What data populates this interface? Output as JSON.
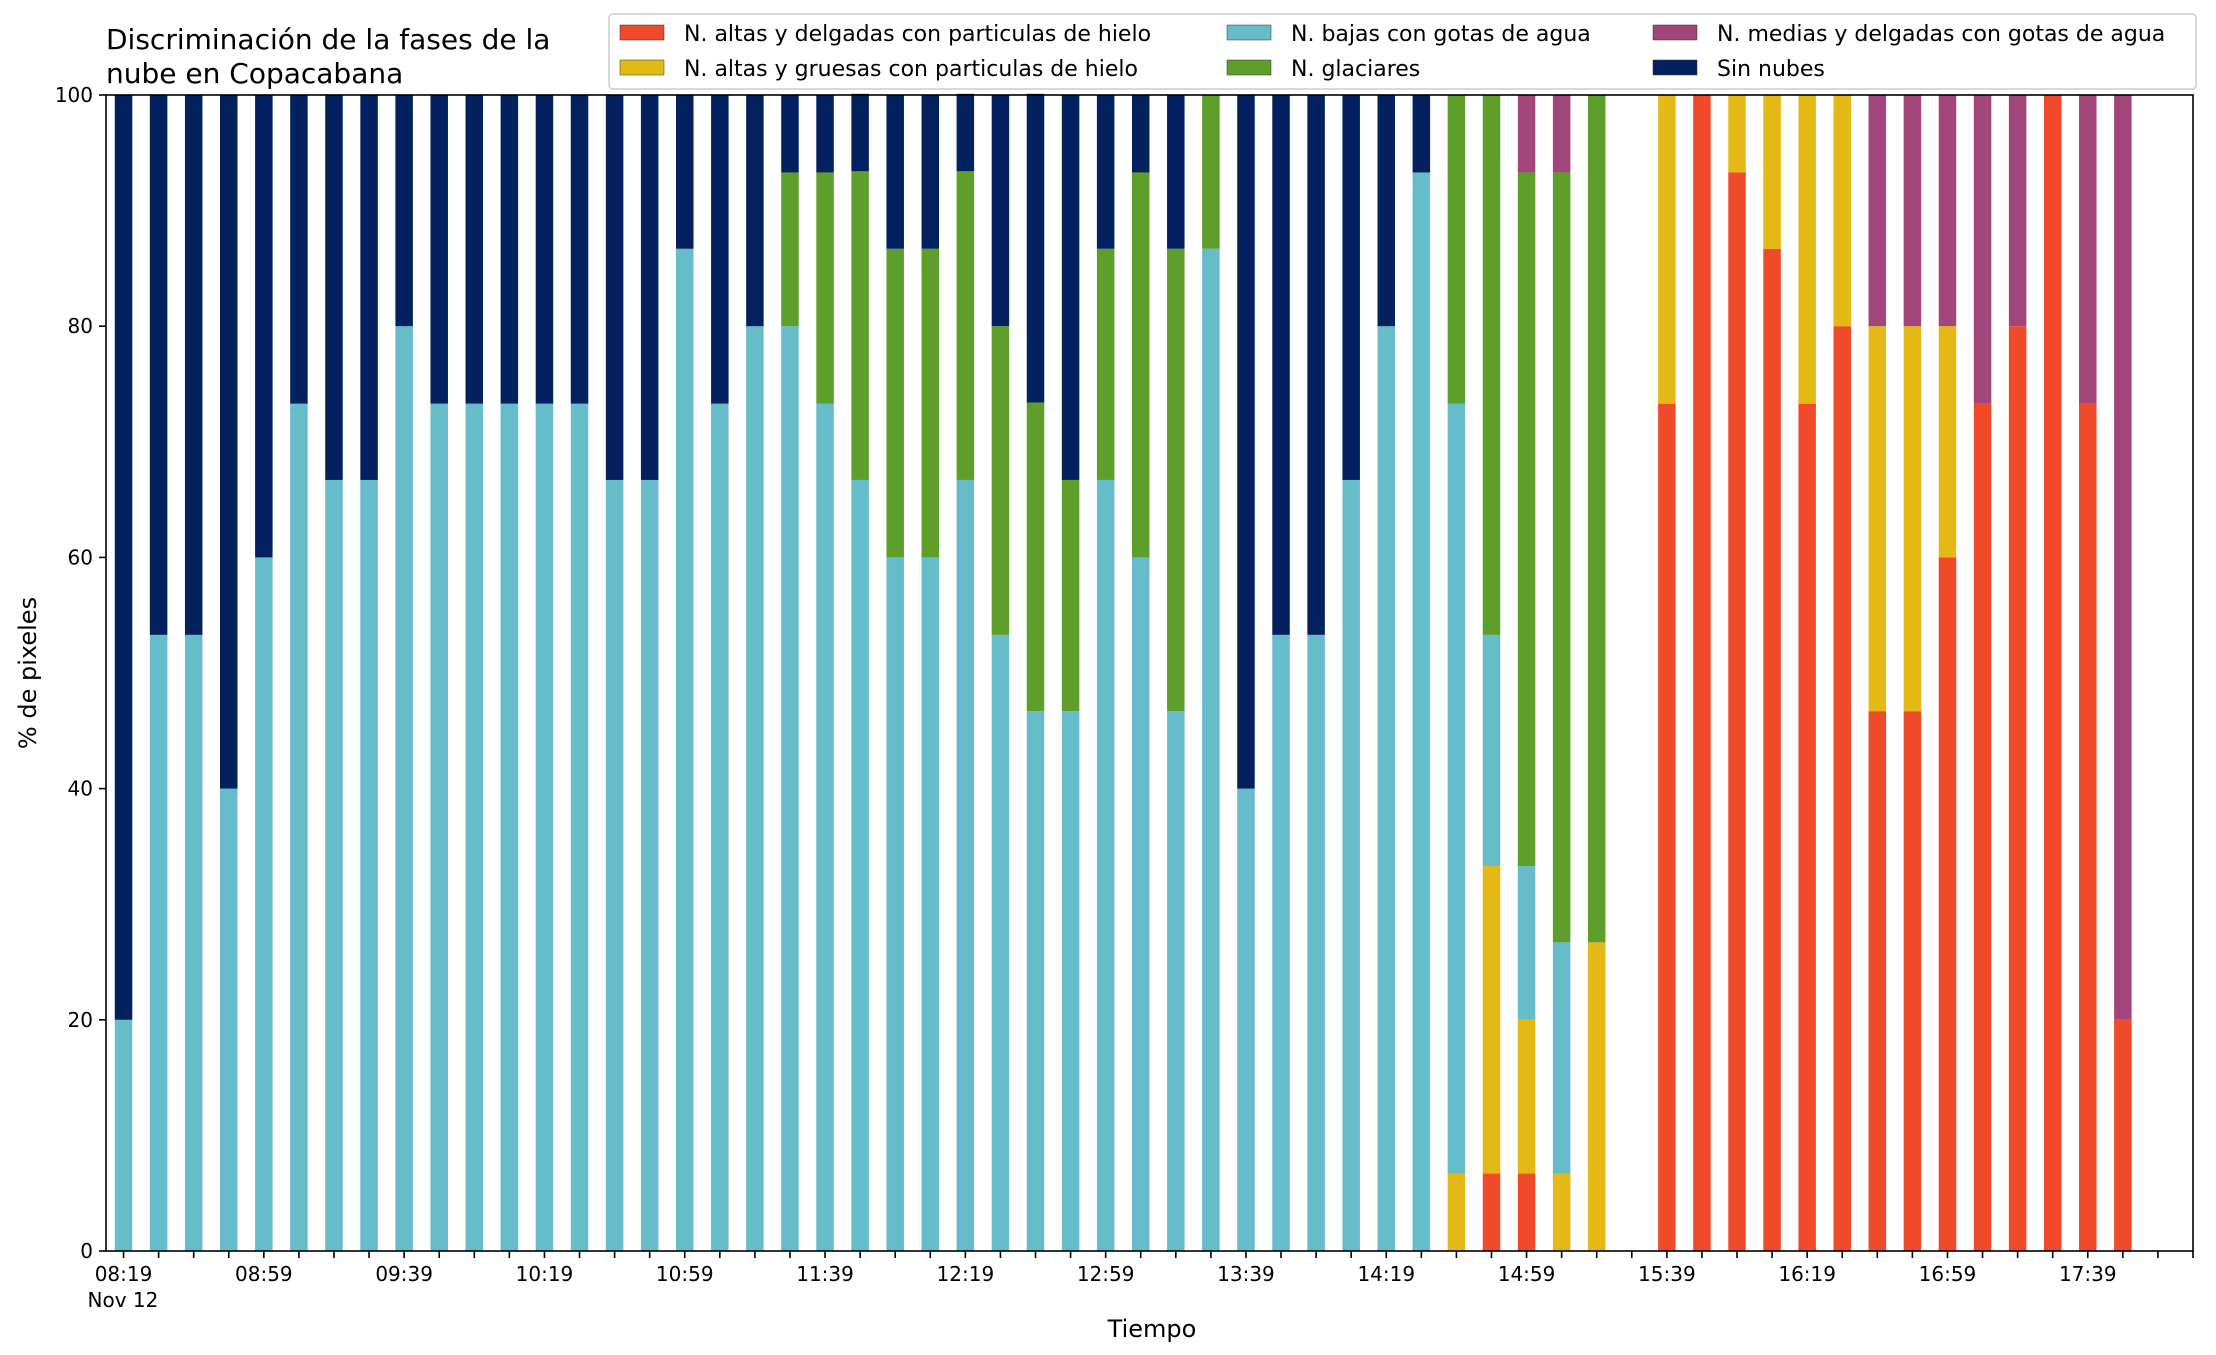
{
  "chart_data": {
    "type": "bar",
    "stacked": true,
    "title_lines": [
      "Discriminación de la fases de la",
      "nube en Copacabana"
    ],
    "xlabel": "Tiempo",
    "ylabel": "% de pixeles",
    "ylim": [
      0,
      100
    ],
    "yticks": [
      0,
      20,
      40,
      60,
      80,
      100
    ],
    "grid": false,
    "legend_position": "top",
    "xlim_minutes": [
      "08:14",
      "18:09"
    ],
    "x_date_label": "Nov 12",
    "xtick_minor": [
      "08:19",
      "08:29",
      "08:39",
      "08:49",
      "08:59",
      "09:09",
      "09:19",
      "09:29",
      "09:39",
      "09:49",
      "09:59",
      "10:09",
      "10:19",
      "10:29",
      "10:39",
      "10:49",
      "10:59",
      "11:09",
      "11:19",
      "11:29",
      "11:39",
      "11:49",
      "11:59",
      "12:09",
      "12:19",
      "12:29",
      "12:39",
      "12:49",
      "12:59",
      "13:09",
      "13:19",
      "13:29",
      "13:39",
      "13:49",
      "13:59",
      "14:09",
      "14:19",
      "14:29",
      "14:39",
      "14:49",
      "14:59",
      "15:09",
      "15:19",
      "15:29",
      "15:39",
      "15:49",
      "15:59",
      "16:09",
      "16:19",
      "16:29",
      "16:39",
      "16:49",
      "16:59",
      "17:09",
      "17:19",
      "17:29",
      "17:39",
      "17:49",
      "17:59",
      "18:09"
    ],
    "xtick_labels": [
      "08:19",
      "08:59",
      "09:39",
      "10:19",
      "10:59",
      "11:39",
      "12:19",
      "12:59",
      "13:39",
      "14:19",
      "14:59",
      "15:39",
      "16:19",
      "16:59",
      "17:39"
    ],
    "series_order": [
      "altas_delgadas",
      "altas_gruesas",
      "bajas",
      "glaciares",
      "medias",
      "sin_nubes"
    ],
    "legend_order": [
      "altas_delgadas",
      "altas_gruesas",
      "bajas",
      "glaciares",
      "medias",
      "sin_nubes"
    ],
    "series": {
      "altas_delgadas": {
        "name": "N. altas y delgadas con particulas de hielo",
        "color": "#ef4a2a"
      },
      "altas_gruesas": {
        "name": "N. altas y gruesas con particulas de hielo",
        "color": "#e5b915"
      },
      "bajas": {
        "name": "N. bajas con gotas de agua",
        "color": "#66bcc8"
      },
      "glaciares": {
        "name": "N. glaciares",
        "color": "#5e9e2a"
      },
      "medias": {
        "name": "N. medias y delgadas con gotas de agua",
        "color": "#a2457a"
      },
      "sin_nubes": {
        "name": "Sin nubes",
        "color": "#03205f"
      }
    },
    "bars": [
      {
        "t": "08:19",
        "altas_delgadas": 0,
        "altas_gruesas": 0,
        "bajas": 20,
        "glaciares": 0,
        "medias": 0,
        "sin_nubes": 80
      },
      {
        "t": "08:29",
        "altas_delgadas": 0,
        "altas_gruesas": 0,
        "bajas": 53.3,
        "glaciares": 0,
        "medias": 0,
        "sin_nubes": 46.7
      },
      {
        "t": "08:39",
        "altas_delgadas": 0,
        "altas_gruesas": 0,
        "bajas": 53.3,
        "glaciares": 0,
        "medias": 0,
        "sin_nubes": 46.7
      },
      {
        "t": "08:49",
        "altas_delgadas": 0,
        "altas_gruesas": 0,
        "bajas": 40,
        "glaciares": 0,
        "medias": 0,
        "sin_nubes": 60
      },
      {
        "t": "08:59",
        "altas_delgadas": 0,
        "altas_gruesas": 0,
        "bajas": 60,
        "glaciares": 0,
        "medias": 0,
        "sin_nubes": 40
      },
      {
        "t": "09:09",
        "altas_delgadas": 0,
        "altas_gruesas": 0,
        "bajas": 73.3,
        "glaciares": 0,
        "medias": 0,
        "sin_nubes": 26.7
      },
      {
        "t": "09:19",
        "altas_delgadas": 0,
        "altas_gruesas": 0,
        "bajas": 66.7,
        "glaciares": 0,
        "medias": 0,
        "sin_nubes": 33.3
      },
      {
        "t": "09:29",
        "altas_delgadas": 0,
        "altas_gruesas": 0,
        "bajas": 66.7,
        "glaciares": 0,
        "medias": 0,
        "sin_nubes": 33.3
      },
      {
        "t": "09:39",
        "altas_delgadas": 0,
        "altas_gruesas": 0,
        "bajas": 80,
        "glaciares": 0,
        "medias": 0,
        "sin_nubes": 20
      },
      {
        "t": "09:49",
        "altas_delgadas": 0,
        "altas_gruesas": 0,
        "bajas": 73.3,
        "glaciares": 0,
        "medias": 0,
        "sin_nubes": 26.7
      },
      {
        "t": "09:59",
        "altas_delgadas": 0,
        "altas_gruesas": 0,
        "bajas": 73.3,
        "glaciares": 0,
        "medias": 0,
        "sin_nubes": 26.7
      },
      {
        "t": "10:09",
        "altas_delgadas": 0,
        "altas_gruesas": 0,
        "bajas": 73.3,
        "glaciares": 0,
        "medias": 0,
        "sin_nubes": 26.7
      },
      {
        "t": "10:19",
        "altas_delgadas": 0,
        "altas_gruesas": 0,
        "bajas": 73.3,
        "glaciares": 0,
        "medias": 0,
        "sin_nubes": 26.7
      },
      {
        "t": "10:29",
        "altas_delgadas": 0,
        "altas_gruesas": 0,
        "bajas": 73.3,
        "glaciares": 0,
        "medias": 0,
        "sin_nubes": 26.7
      },
      {
        "t": "10:39",
        "altas_delgadas": 0,
        "altas_gruesas": 0,
        "bajas": 66.7,
        "glaciares": 0,
        "medias": 0,
        "sin_nubes": 33.3
      },
      {
        "t": "10:49",
        "altas_delgadas": 0,
        "altas_gruesas": 0,
        "bajas": 66.7,
        "glaciares": 0,
        "medias": 0,
        "sin_nubes": 33.3
      },
      {
        "t": "10:59",
        "altas_delgadas": 0,
        "altas_gruesas": 0,
        "bajas": 86.7,
        "glaciares": 0,
        "medias": 0,
        "sin_nubes": 13.3
      },
      {
        "t": "11:09",
        "altas_delgadas": 0,
        "altas_gruesas": 0,
        "bajas": 73.3,
        "glaciares": 0,
        "medias": 0,
        "sin_nubes": 26.7
      },
      {
        "t": "11:19",
        "altas_delgadas": 0,
        "altas_gruesas": 0,
        "bajas": 80,
        "glaciares": 0,
        "medias": 0,
        "sin_nubes": 20
      },
      {
        "t": "11:29",
        "altas_delgadas": 0,
        "altas_gruesas": 0,
        "bajas": 80,
        "glaciares": 13.3,
        "medias": 0,
        "sin_nubes": 6.7
      },
      {
        "t": "11:39",
        "altas_delgadas": 0,
        "altas_gruesas": 0,
        "bajas": 73.3,
        "glaciares": 20,
        "medias": 0,
        "sin_nubes": 6.7
      },
      {
        "t": "11:49",
        "altas_delgadas": 0,
        "altas_gruesas": 0,
        "bajas": 66.7,
        "glaciares": 26.7,
        "medias": 0,
        "sin_nubes": 6.7
      },
      {
        "t": "11:59",
        "altas_delgadas": 0,
        "altas_gruesas": 0,
        "bajas": 60,
        "glaciares": 26.7,
        "medias": 0,
        "sin_nubes": 13.3
      },
      {
        "t": "12:09",
        "altas_delgadas": 0,
        "altas_gruesas": 0,
        "bajas": 60,
        "glaciares": 26.7,
        "medias": 0,
        "sin_nubes": 13.3
      },
      {
        "t": "12:19",
        "altas_delgadas": 0,
        "altas_gruesas": 0,
        "bajas": 66.7,
        "glaciares": 26.7,
        "medias": 0,
        "sin_nubes": 6.7
      },
      {
        "t": "12:29",
        "altas_delgadas": 0,
        "altas_gruesas": 0,
        "bajas": 53.3,
        "glaciares": 26.7,
        "medias": 0,
        "sin_nubes": 20
      },
      {
        "t": "12:39",
        "altas_delgadas": 0,
        "altas_gruesas": 0,
        "bajas": 46.7,
        "glaciares": 26.7,
        "medias": 0,
        "sin_nubes": 26.7
      },
      {
        "t": "12:49",
        "altas_delgadas": 0,
        "altas_gruesas": 0,
        "bajas": 46.7,
        "glaciares": 20,
        "medias": 0,
        "sin_nubes": 33.3
      },
      {
        "t": "12:59",
        "altas_delgadas": 0,
        "altas_gruesas": 0,
        "bajas": 66.7,
        "glaciares": 20,
        "medias": 0,
        "sin_nubes": 13.3
      },
      {
        "t": "13:09",
        "altas_delgadas": 0,
        "altas_gruesas": 0,
        "bajas": 60,
        "glaciares": 33.3,
        "medias": 0,
        "sin_nubes": 6.7
      },
      {
        "t": "13:19",
        "altas_delgadas": 0,
        "altas_gruesas": 0,
        "bajas": 46.7,
        "glaciares": 40,
        "medias": 0,
        "sin_nubes": 13.3
      },
      {
        "t": "13:29",
        "altas_delgadas": 0,
        "altas_gruesas": 0,
        "bajas": 86.7,
        "glaciares": 13.3,
        "medias": 0,
        "sin_nubes": 0
      },
      {
        "t": "13:39",
        "altas_delgadas": 0,
        "altas_gruesas": 0,
        "bajas": 40,
        "glaciares": 0,
        "medias": 0,
        "sin_nubes": 60
      },
      {
        "t": "13:49",
        "altas_delgadas": 0,
        "altas_gruesas": 0,
        "bajas": 53.3,
        "glaciares": 0,
        "medias": 0,
        "sin_nubes": 46.7
      },
      {
        "t": "13:59",
        "altas_delgadas": 0,
        "altas_gruesas": 0,
        "bajas": 53.3,
        "glaciares": 0,
        "medias": 0,
        "sin_nubes": 46.7
      },
      {
        "t": "14:09",
        "altas_delgadas": 0,
        "altas_gruesas": 0,
        "bajas": 66.7,
        "glaciares": 0,
        "medias": 0,
        "sin_nubes": 33.3
      },
      {
        "t": "14:19",
        "altas_delgadas": 0,
        "altas_gruesas": 0,
        "bajas": 80,
        "glaciares": 0,
        "medias": 0,
        "sin_nubes": 20
      },
      {
        "t": "14:29",
        "altas_delgadas": 0,
        "altas_gruesas": 0,
        "bajas": 93.3,
        "glaciares": 0,
        "medias": 0,
        "sin_nubes": 6.7
      },
      {
        "t": "14:39",
        "altas_delgadas": 0,
        "altas_gruesas": 6.7,
        "bajas": 66.6,
        "glaciares": 26.7,
        "medias": 0,
        "sin_nubes": 0
      },
      {
        "t": "14:49",
        "altas_delgadas": 6.7,
        "altas_gruesas": 26.6,
        "bajas": 20,
        "glaciares": 46.7,
        "medias": 0,
        "sin_nubes": 0
      },
      {
        "t": "14:59",
        "altas_delgadas": 6.7,
        "altas_gruesas": 13.3,
        "bajas": 13.3,
        "glaciares": 60,
        "medias": 6.7,
        "sin_nubes": 0
      },
      {
        "t": "15:09",
        "altas_delgadas": 0,
        "altas_gruesas": 6.7,
        "bajas": 20,
        "glaciares": 66.6,
        "medias": 6.7,
        "sin_nubes": 0
      },
      {
        "t": "15:19",
        "altas_delgadas": 0,
        "altas_gruesas": 26.7,
        "bajas": 0,
        "glaciares": 73.3,
        "medias": 0,
        "sin_nubes": 0
      },
      {
        "t": "15:39",
        "altas_delgadas": 73.3,
        "altas_gruesas": 26.7,
        "bajas": 0,
        "glaciares": 0,
        "medias": 0,
        "sin_nubes": 0
      },
      {
        "t": "15:49",
        "altas_delgadas": 100,
        "altas_gruesas": 0,
        "bajas": 0,
        "glaciares": 0,
        "medias": 0,
        "sin_nubes": 0
      },
      {
        "t": "15:59",
        "altas_delgadas": 93.3,
        "altas_gruesas": 6.7,
        "bajas": 0,
        "glaciares": 0,
        "medias": 0,
        "sin_nubes": 0
      },
      {
        "t": "16:09",
        "altas_delgadas": 86.7,
        "altas_gruesas": 13.3,
        "bajas": 0,
        "glaciares": 0,
        "medias": 0,
        "sin_nubes": 0
      },
      {
        "t": "16:19",
        "altas_delgadas": 73.3,
        "altas_gruesas": 26.7,
        "bajas": 0,
        "glaciares": 0,
        "medias": 0,
        "sin_nubes": 0
      },
      {
        "t": "16:29",
        "altas_delgadas": 80,
        "altas_gruesas": 20,
        "bajas": 0,
        "glaciares": 0,
        "medias": 0,
        "sin_nubes": 0
      },
      {
        "t": "16:39",
        "altas_delgadas": 46.7,
        "altas_gruesas": 33.3,
        "bajas": 0,
        "glaciares": 0,
        "medias": 20,
        "sin_nubes": 0
      },
      {
        "t": "16:49",
        "altas_delgadas": 46.7,
        "altas_gruesas": 33.3,
        "bajas": 0,
        "glaciares": 0,
        "medias": 20,
        "sin_nubes": 0
      },
      {
        "t": "16:59",
        "altas_delgadas": 60,
        "altas_gruesas": 20,
        "bajas": 0,
        "glaciares": 0,
        "medias": 20,
        "sin_nubes": 0
      },
      {
        "t": "17:09",
        "altas_delgadas": 73.3,
        "altas_gruesas": 0,
        "bajas": 0,
        "glaciares": 0,
        "medias": 26.7,
        "sin_nubes": 0
      },
      {
        "t": "17:19",
        "altas_delgadas": 80,
        "altas_gruesas": 0,
        "bajas": 0,
        "glaciares": 0,
        "medias": 20,
        "sin_nubes": 0
      },
      {
        "t": "17:29",
        "altas_delgadas": 100,
        "altas_gruesas": 0,
        "bajas": 0,
        "glaciares": 0,
        "medias": 0,
        "sin_nubes": 0
      },
      {
        "t": "17:39",
        "altas_delgadas": 73.3,
        "altas_gruesas": 0,
        "bajas": 0,
        "glaciares": 0,
        "medias": 26.7,
        "sin_nubes": 0
      },
      {
        "t": "17:49",
        "altas_delgadas": 20,
        "altas_gruesas": 0,
        "bajas": 0,
        "glaciares": 0,
        "medias": 80,
        "sin_nubes": 0
      }
    ]
  }
}
